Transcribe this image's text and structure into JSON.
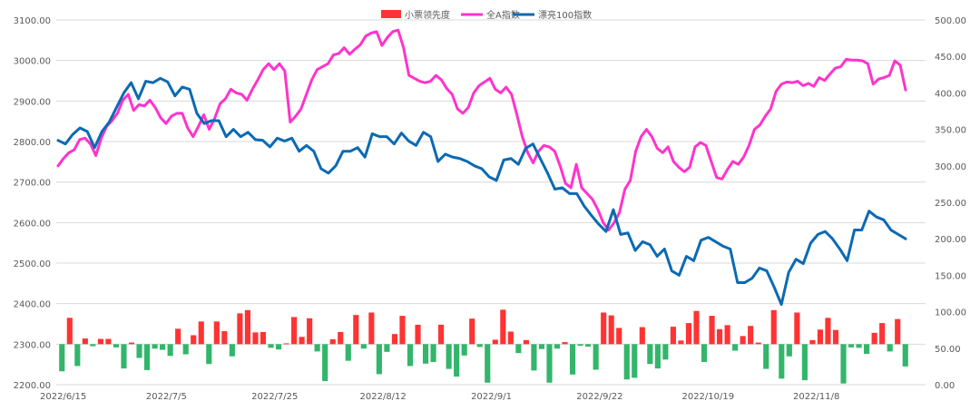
{
  "chart_data": {
    "type": "bar+line",
    "title": "",
    "legend": {
      "position": "top",
      "entries": [
        {
          "name": "小票领先度",
          "kind": "bar",
          "color": "#ff3333"
        },
        {
          "name": "全A指数",
          "kind": "line",
          "color": "#ff33cc"
        },
        {
          "name": "漂亮100指数",
          "kind": "line",
          "color": "#0b6ab3"
        }
      ]
    },
    "left_axis": {
      "range": [
        2200,
        3100
      ],
      "ticks": [
        "2200.00",
        "2300.00",
        "2400.00",
        "2500.00",
        "2600.00",
        "2700.00",
        "2800.00",
        "2900.00",
        "3000.00",
        "3100.00"
      ]
    },
    "right_axis": {
      "range": [
        0,
        500
      ],
      "ticks": [
        "0.00",
        "50.00",
        "100.00",
        "150.00",
        "200.00",
        "250.00",
        "300.00",
        "350.00",
        "400.00",
        "450.00",
        "500.00"
      ]
    },
    "x_axis": {
      "labels": [
        "2022/6/15",
        "2022/7/5",
        "2022/7/25",
        "2022/8/12",
        "2022/9/1",
        "2022/9/22",
        "2022/10/19",
        "2022/11/8"
      ],
      "label_indices": [
        0,
        14,
        28,
        42,
        56,
        70,
        84,
        98
      ]
    },
    "grid": "horizontal",
    "bar_colors": {
      "up": "#ff3333",
      "down": "#33b56b"
    },
    "series": [
      {
        "name": "小票领先度",
        "type": "bar",
        "axis": "left",
        "baseline": 2300,
        "values": [
          2233,
          2365,
          2246,
          2314,
          2295,
          2313,
          2313,
          2292,
          2240,
          2304,
          2266,
          2236,
          2289,
          2286,
          2271,
          2338,
          2275,
          2322,
          2356,
          2251,
          2356,
          2332,
          2270,
          2376,
          2384,
          2329,
          2330,
          2291,
          2287,
          2302,
          2367,
          2318,
          2364,
          2282,
          2209,
          2312,
          2330,
          2259,
          2372,
          2289,
          2378,
          2226,
          2281,
          2325,
          2370,
          2246,
          2348,
          2252,
          2256,
          2348,
          2239,
          2220,
          2272,
          2363,
          2293,
          2205,
          2311,
          2385,
          2331,
          2278,
          2310,
          2235,
          2288,
          2205,
          2289,
          2305,
          2225,
          2296,
          2294,
          2237,
          2378,
          2371,
          2340,
          2213,
          2217,
          2342,
          2251,
          2240,
          2262,
          2343,
          2309,
          2352,
          2382,
          2256,
          2370,
          2337,
          2347,
          2284,
          2320,
          2345,
          2304,
          2239,
          2384,
          2215,
          2270,
          2378,
          2211,
          2310,
          2336,
          2365,
          2335,
          2203,
          2292,
          2291,
          2276,
          2328,
          2352,
          2282,
          2362,
          2245
        ],
        "color_rule": "red if value >= baseline else green"
      },
      {
        "name": "全A指数",
        "type": "line",
        "axis": "right",
        "color": "#ff33cc",
        "values": [
          300,
          310,
          318,
          322,
          336,
          338,
          330,
          314,
          338,
          354,
          362,
          372,
          390,
          398,
          376,
          384,
          382,
          390,
          380,
          366,
          358,
          368,
          372,
          372,
          352,
          340,
          354,
          370,
          350,
          365,
          385,
          392,
          405,
          400,
          398,
          390,
          405,
          418,
          432,
          440,
          432,
          440,
          430,
          360,
          368,
          378,
          398,
          418,
          432,
          436,
          440,
          452,
          454,
          462,
          453,
          460,
          466,
          478,
          482,
          484,
          465,
          476,
          484,
          486,
          462,
          424,
          420,
          416,
          414,
          416,
          424,
          418,
          406,
          398,
          378,
          372,
          380,
          400,
          410,
          415,
          420,
          405,
          400,
          408,
          398,
          370,
          340,
          318,
          304,
          320,
          328,
          326,
          320,
          300,
          276,
          270,
          302,
          270,
          262,
          254,
          240,
          222,
          212,
          222,
          236,
          268,
          280,
          320,
          340,
          350,
          340,
          324,
          318,
          326,
          306,
          298,
          292,
          298,
          326,
          332,
          328,
          306,
          284,
          282,
          295,
          306,
          302,
          312,
          328,
          350,
          356,
          368,
          378,
          402,
          412,
          415,
          414,
          416,
          410,
          413,
          409,
          421,
          417,
          426,
          434,
          436,
          446,
          445,
          445,
          444,
          440,
          412,
          419,
          421,
          424,
          444,
          438,
          404
        ],
        "note": "sampled left-to-right; line values estimated from right axis"
      },
      {
        "name": "漂亮100指数",
        "type": "line",
        "axis": "right",
        "color": "#0b6ab3",
        "values": [
          335,
          330,
          343,
          352,
          347,
          325,
          347,
          360,
          380,
          400,
          414,
          392,
          416,
          414,
          420,
          415,
          396,
          408,
          405,
          372,
          358,
          362,
          362,
          340,
          350,
          340,
          346,
          336,
          335,
          326,
          338,
          334,
          338,
          320,
          328,
          320,
          296,
          290,
          300,
          320,
          320,
          325,
          312,
          344,
          340,
          340,
          330,
          345,
          334,
          328,
          346,
          340,
          306,
          316,
          312,
          310,
          306,
          300,
          296,
          285,
          280,
          308,
          310,
          302,
          324,
          330,
          310,
          290,
          268,
          270,
          262,
          262,
          245,
          232,
          220,
          210,
          240,
          206,
          208,
          184,
          196,
          192,
          176,
          186,
          156,
          150,
          176,
          170,
          198,
          202,
          196,
          190,
          186,
          140,
          140,
          146,
          160,
          156,
          134,
          110,
          154,
          172,
          166,
          194,
          206,
          210,
          200,
          186,
          170,
          212,
          212,
          238,
          230,
          226,
          212,
          206,
          200
        ]
      }
    ]
  }
}
